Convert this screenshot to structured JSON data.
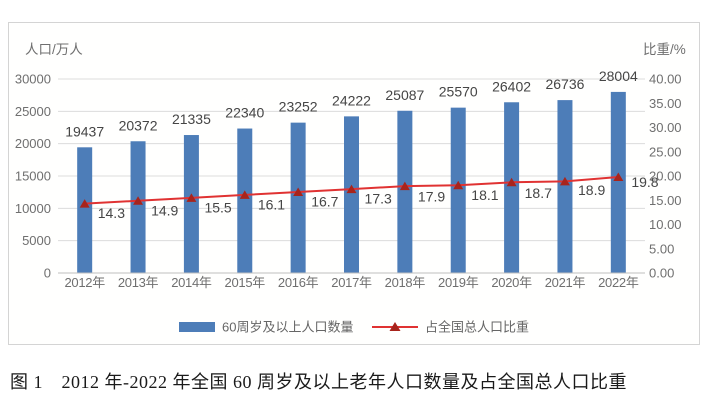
{
  "page": {
    "background": "#ffffff"
  },
  "figure": {
    "caption": "图 1　2012 年-2022 年全国 60 周岁及以上老年人口数量及占全国总人口比重"
  },
  "chart_data": {
    "type": "combo-bar-line",
    "categories": [
      "2012年",
      "2013年",
      "2014年",
      "2015年",
      "2016年",
      "2017年",
      "2018年",
      "2019年",
      "2020年",
      "2021年",
      "2022年"
    ],
    "series": [
      {
        "name": "60周岁及以上人口数量",
        "type": "bar",
        "axis": "left",
        "color": "#4d7db8",
        "values": [
          19437,
          20372,
          21335,
          22340,
          23252,
          24222,
          25087,
          25570,
          26402,
          26736,
          28004
        ]
      },
      {
        "name": "占全国总人口比重",
        "type": "line",
        "axis": "right",
        "color": "#e03232",
        "marker": "triangle",
        "marker_color": "#a8241c",
        "values": [
          14.3,
          14.9,
          15.5,
          16.1,
          16.7,
          17.3,
          17.9,
          18.1,
          18.7,
          18.9,
          19.8
        ]
      }
    ],
    "left_axis": {
      "title": "人口/万人",
      "min": 0,
      "max": 30000,
      "step": 5000,
      "tick_labels": [
        "30000",
        "25000",
        "20000",
        "15000",
        "10000",
        "5000",
        "0"
      ]
    },
    "right_axis": {
      "title": "比重/%",
      "min": 0,
      "max": 40,
      "step": 5,
      "tick_labels": [
        "40.00",
        "35.00",
        "30.00",
        "25.00",
        "20.00",
        "15.00",
        "10.00",
        "5.00",
        "0.00"
      ]
    },
    "grid": true,
    "legend_position": "bottom",
    "style": {
      "gridline_color": "#dcdcdc",
      "axis_line_color": "#bfbfbf",
      "tick_text_color": "#6f6f6f",
      "axis_title_color": "#6f6f6f",
      "data_label_color": "#454545",
      "legend_text_color": "#666666",
      "border_color": "#d4d4d4"
    }
  }
}
